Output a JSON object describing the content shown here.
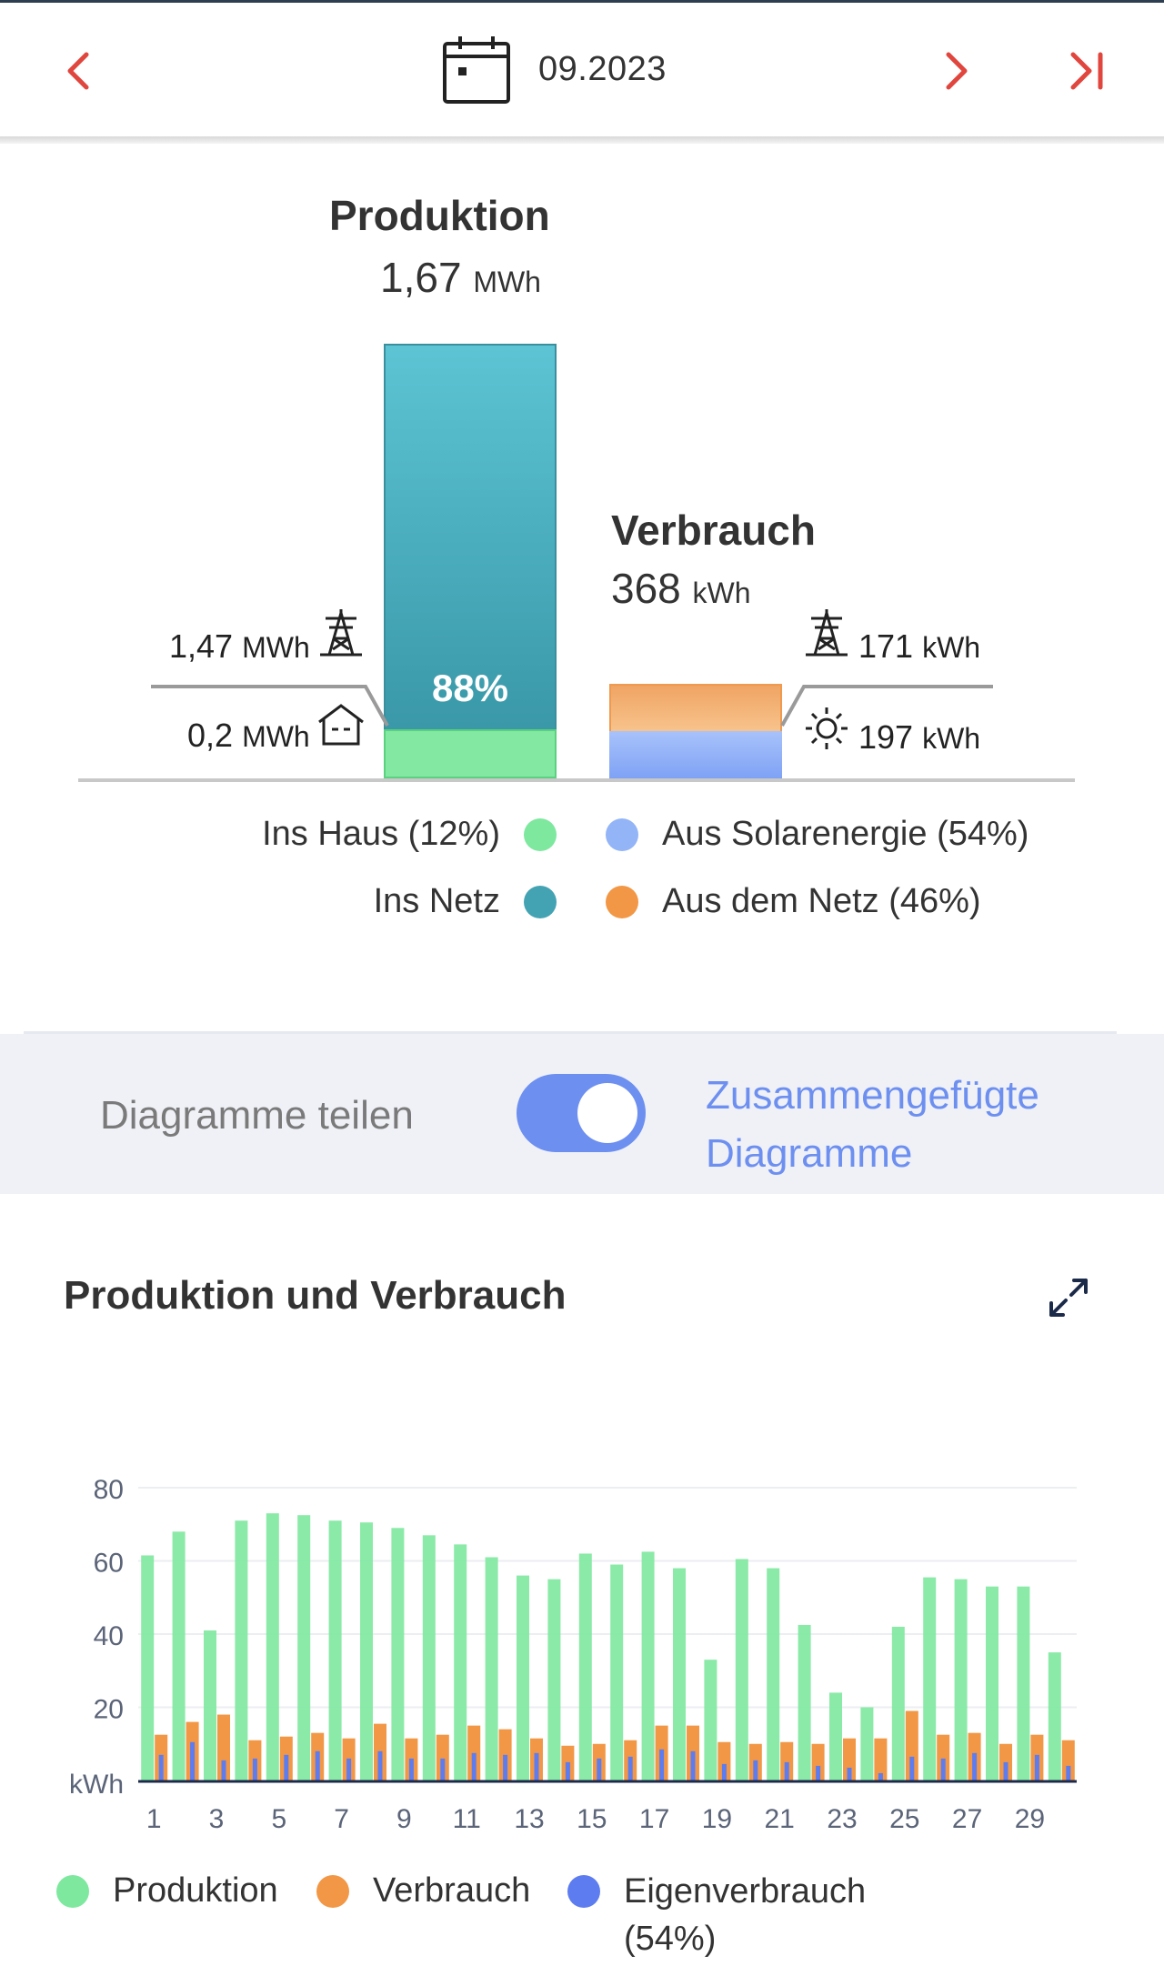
{
  "header": {
    "date": "09.2023"
  },
  "summary": {
    "production": {
      "title": "Produktion",
      "value": "1,67",
      "unit": "MWh"
    },
    "consumption": {
      "title": "Verbrauch",
      "value": "368",
      "unit": "kWh"
    },
    "bar_percent": "88%",
    "to_grid": {
      "value": "1,47",
      "unit": "MWh"
    },
    "to_house": {
      "value": "0,2",
      "unit": "MWh"
    },
    "from_grid": {
      "value": "171",
      "unit": "kWh"
    },
    "from_solar": {
      "value": "197",
      "unit": "kWh"
    },
    "legend": {
      "ins_haus": "Ins Haus (12%)",
      "ins_netz": "Ins Netz",
      "aus_solar": "Aus Solarenergie (54%)",
      "aus_netz": "Aus dem Netz (46%)"
    },
    "colors": {
      "haus": "#7ee89f",
      "netz": "#44a3b3",
      "solar": "#93b4f7",
      "grid": "#f29745"
    }
  },
  "toggle": {
    "left_label": "Diagramme teilen",
    "right_label_line1": "Zusammengefügte",
    "right_label_line2": "Diagramme",
    "state": "on"
  },
  "chart_section": {
    "title": "Produktion und Verbrauch"
  },
  "chart_data": {
    "type": "bar",
    "ylabel": "kWh",
    "ylim": [
      0,
      80
    ],
    "yticks": [
      20,
      40,
      60,
      80
    ],
    "xtick_labels": [
      "1",
      "3",
      "5",
      "7",
      "9",
      "11",
      "13",
      "15",
      "17",
      "19",
      "21",
      "23",
      "25",
      "27",
      "29"
    ],
    "categories": [
      1,
      2,
      3,
      4,
      5,
      6,
      7,
      8,
      9,
      10,
      11,
      12,
      13,
      14,
      15,
      16,
      17,
      18,
      19,
      20,
      21,
      22,
      23,
      24,
      25,
      26,
      27,
      28,
      29,
      30
    ],
    "series": [
      {
        "name": "Produktion",
        "color": "#7ee89f",
        "values": [
          61.5,
          68,
          41,
          71,
          73,
          72.5,
          71,
          70.5,
          69,
          67,
          64.5,
          61,
          56,
          55,
          62,
          59,
          62.5,
          58,
          33,
          60.5,
          58,
          42.5,
          24,
          20,
          42,
          55.5,
          55,
          53,
          53,
          35
        ]
      },
      {
        "name": "Verbrauch",
        "color": "#f29745",
        "values": [
          12.5,
          16,
          18,
          11,
          12,
          13,
          11.5,
          15.5,
          11.5,
          12.5,
          15,
          14,
          11.5,
          9.5,
          10,
          11,
          15,
          15,
          10.5,
          10,
          10.5,
          10,
          11.5,
          11.5,
          19,
          12.5,
          13,
          10,
          12.5,
          11
        ]
      },
      {
        "name": "Eigenverbrauch",
        "color": "#5d7cf0",
        "values": [
          7,
          10.5,
          5.5,
          6,
          7,
          8,
          6,
          8,
          6,
          6,
          7.5,
          7,
          7.5,
          5,
          6,
          6.5,
          8.5,
          8,
          4.5,
          5.5,
          5,
          4,
          3.5,
          2,
          6.5,
          6,
          7.5,
          5,
          7,
          4
        ]
      }
    ]
  },
  "chart_legend": {
    "produktion": "Produktion",
    "verbrauch": "Verbrauch",
    "eigen_line1": "Eigenverbrauch",
    "eigen_line2": "(54%)"
  }
}
